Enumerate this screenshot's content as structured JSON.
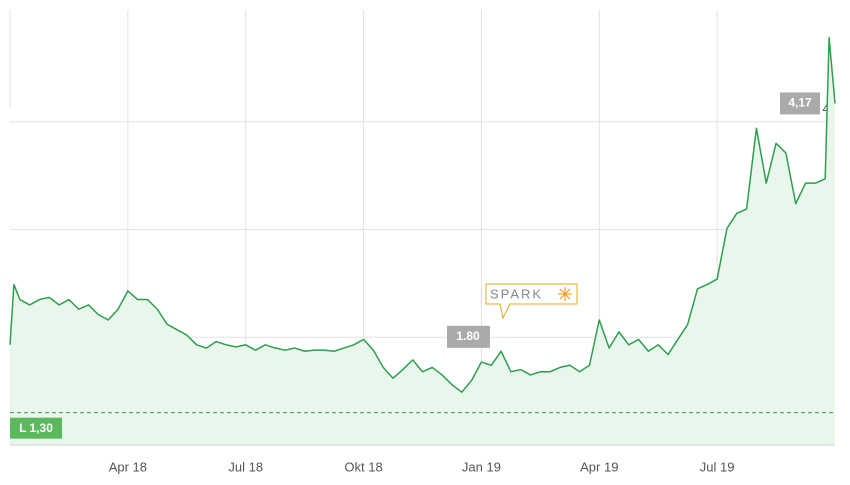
{
  "chart_data": {
    "type": "line",
    "x": [
      0,
      0.1,
      0.25,
      0.5,
      0.75,
      1,
      1.25,
      1.5,
      1.75,
      2,
      2.25,
      2.5,
      2.75,
      3,
      3.25,
      3.5,
      3.75,
      4,
      4.25,
      4.5,
      4.75,
      5,
      5.25,
      5.5,
      5.75,
      6,
      6.25,
      6.5,
      6.75,
      7,
      7.25,
      7.5,
      7.75,
      8,
      8.25,
      8.5,
      8.75,
      9,
      9.25,
      9.5,
      9.75,
      10,
      10.25,
      10.5,
      10.75,
      11,
      11.25,
      11.5,
      11.75,
      12,
      12.25,
      12.5,
      12.75,
      13,
      13.25,
      13.5,
      13.75,
      14,
      14.25,
      14.5,
      14.75,
      15,
      15.25,
      15.5,
      15.75,
      16,
      16.25,
      16.5,
      16.75,
      17,
      17.25,
      17.5,
      17.75,
      18,
      18.25,
      18.5,
      18.75,
      19,
      19.25,
      19.5,
      19.75,
      20,
      20.25,
      20.5,
      20.75,
      20.85,
      21
    ],
    "series": [
      {
        "color": "#2e9e4f",
        "values": [
          1.93,
          2.49,
          2.35,
          2.3,
          2.35,
          2.37,
          2.3,
          2.35,
          2.26,
          2.3,
          2.21,
          2.16,
          2.26,
          2.43,
          2.35,
          2.35,
          2.26,
          2.12,
          2.07,
          2.02,
          1.93,
          1.9,
          1.96,
          1.93,
          1.91,
          1.93,
          1.88,
          1.93,
          1.9,
          1.88,
          1.9,
          1.87,
          1.88,
          1.88,
          1.87,
          1.9,
          1.93,
          1.98,
          1.88,
          1.72,
          1.62,
          1.7,
          1.79,
          1.68,
          1.72,
          1.65,
          1.56,
          1.49,
          1.6,
          1.77,
          1.74,
          1.87,
          1.68,
          1.7,
          1.65,
          1.68,
          1.68,
          1.72,
          1.74,
          1.68,
          1.74,
          2.16,
          1.9,
          2.05,
          1.93,
          1.98,
          1.87,
          1.93,
          1.84,
          1.98,
          2.12,
          2.45,
          2.49,
          2.54,
          3.01,
          3.15,
          3.19,
          3.94,
          3.43,
          3.8,
          3.71,
          3.24,
          3.43,
          3.43,
          3.47,
          4.78,
          4.17
        ]
      }
    ],
    "xlim": [
      0,
      21
    ],
    "xticks": [
      {
        "value": 3,
        "label": "Apr 18"
      },
      {
        "value": 6,
        "label": "Jul 18"
      },
      {
        "value": 9,
        "label": "Okt 18"
      },
      {
        "value": 12,
        "label": "Jan 19"
      },
      {
        "value": 15,
        "label": "Apr 19"
      },
      {
        "value": 18,
        "label": "Jul 19"
      }
    ],
    "ylim": [
      1,
      5
    ],
    "yticks": [
      1,
      2,
      3,
      4
    ],
    "grid": true,
    "fill_color": "#e9f6ec",
    "low_line": {
      "value": 1.3,
      "label": "L 1,30"
    },
    "last_label": {
      "value": 4.17,
      "label": "4,17"
    },
    "tooltip": {
      "value": 1.8,
      "label": "1.80"
    },
    "brand": "SPARK"
  }
}
